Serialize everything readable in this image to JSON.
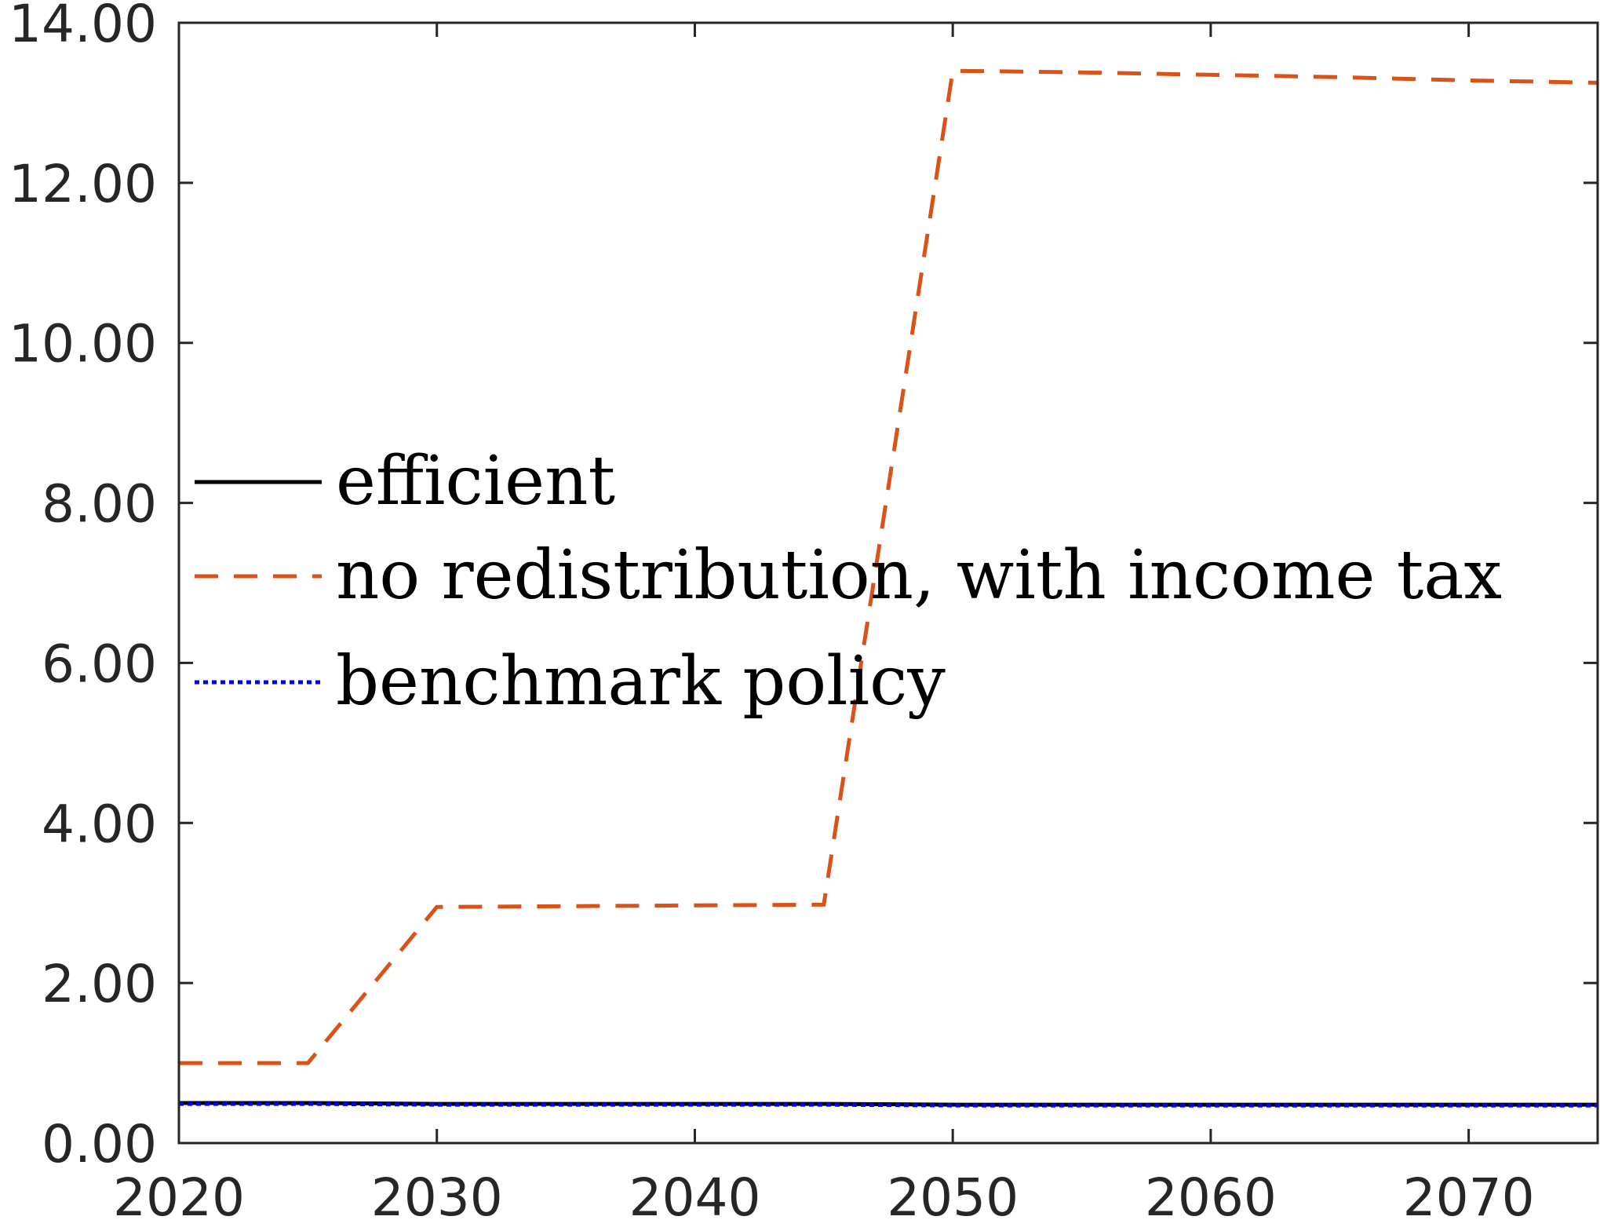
{
  "chart_data": {
    "type": "line",
    "title": "",
    "xlabel": "",
    "ylabel": "",
    "xlim": [
      2020,
      2075
    ],
    "ylim": [
      0,
      14
    ],
    "x_ticks": [
      2020,
      2030,
      2040,
      2050,
      2060,
      2070
    ],
    "x_tick_labels": [
      "2020",
      "2030",
      "2040",
      "2050",
      "2060",
      "2070"
    ],
    "y_ticks": [
      0,
      2,
      4,
      6,
      8,
      10,
      12,
      14
    ],
    "y_tick_labels": [
      "0.00",
      "2.00",
      "4.00",
      "6.00",
      "8.00",
      "10.00",
      "12.00",
      "14.00"
    ],
    "grid": false,
    "legend_position": "center-left",
    "x": [
      2020,
      2025,
      2030,
      2035,
      2040,
      2045,
      2050,
      2055,
      2060,
      2065,
      2070,
      2075
    ],
    "series": [
      {
        "name": "efficient",
        "color": "#000000",
        "style": "solid",
        "values": [
          0.5,
          0.5,
          0.49,
          0.49,
          0.49,
          0.49,
          0.48,
          0.48,
          0.48,
          0.48,
          0.48,
          0.48
        ]
      },
      {
        "name": "no redistribution, with income tax",
        "color": "#D95319",
        "style": "dashed",
        "values": [
          1.0,
          1.0,
          2.95,
          2.96,
          2.97,
          2.98,
          13.4,
          13.38,
          13.35,
          13.32,
          13.28,
          13.25
        ]
      },
      {
        "name": "benchmark policy",
        "color": "#0000FF",
        "style": "dotted",
        "values": [
          0.49,
          0.49,
          0.48,
          0.48,
          0.48,
          0.48,
          0.47,
          0.47,
          0.47,
          0.47,
          0.47,
          0.47
        ]
      }
    ]
  }
}
